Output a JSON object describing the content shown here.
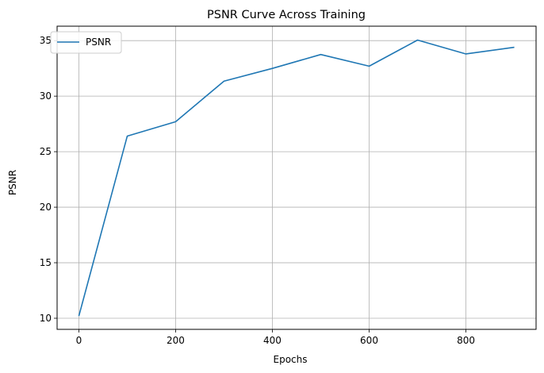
{
  "chart_data": {
    "type": "line",
    "title": "PSNR Curve Across Training",
    "xlabel": "Epochs",
    "ylabel": "PSNR",
    "xlim": [
      -45,
      945
    ],
    "ylim": [
      9.0,
      36.3
    ],
    "xticks": [
      0,
      200,
      400,
      600,
      800
    ],
    "yticks": [
      10,
      15,
      20,
      25,
      30,
      35
    ],
    "grid": true,
    "legend_position": "upper-left",
    "series": [
      {
        "name": "PSNR",
        "color": "#1f77b4",
        "x": [
          0,
          100,
          200,
          300,
          400,
          500,
          600,
          700,
          800,
          900
        ],
        "y": [
          10.2,
          26.4,
          27.7,
          31.35,
          32.5,
          33.75,
          32.7,
          35.05,
          33.8,
          34.4
        ]
      }
    ]
  }
}
